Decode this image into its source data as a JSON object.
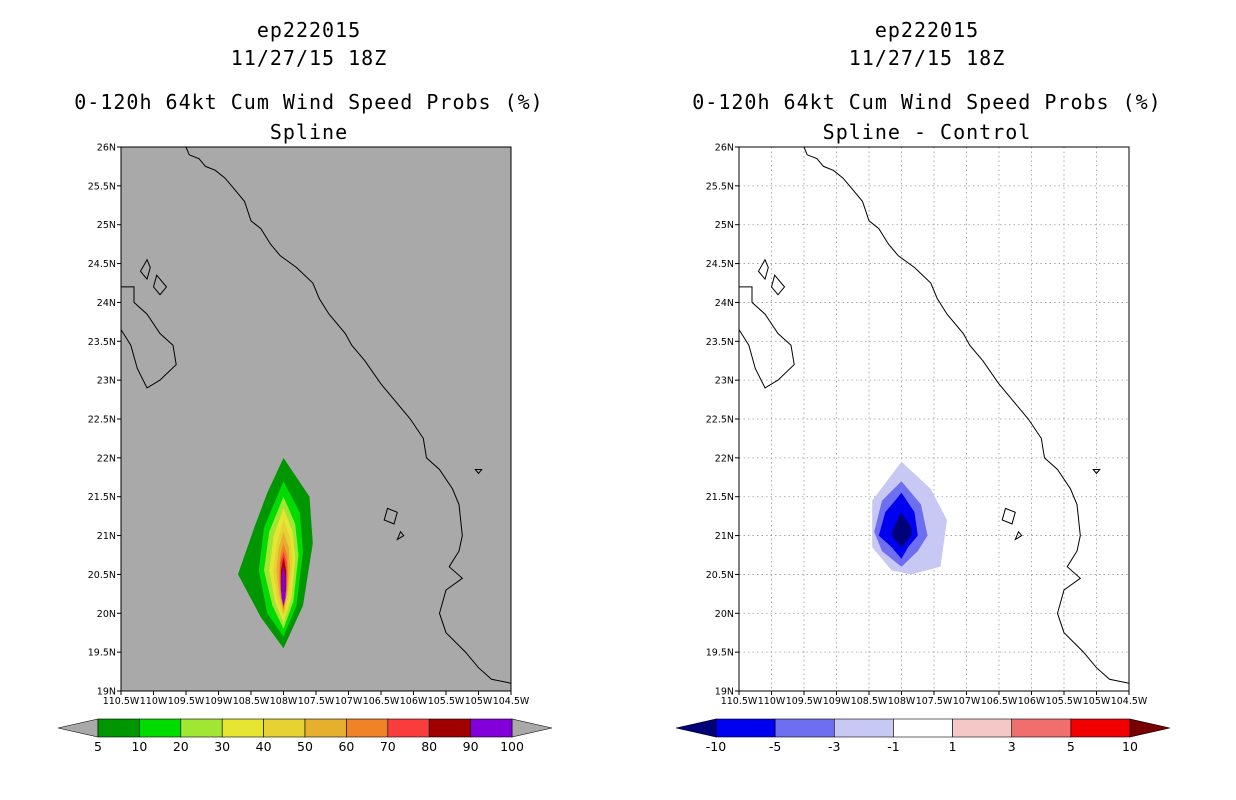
{
  "colors": {
    "land_ocean_left": "#a9a9a9",
    "frame": "#000000",
    "grid": "#999999"
  },
  "chart_data": [
    {
      "type": "heatmap",
      "storm": "ep222015",
      "datetime": "11/27/15 18Z",
      "title": "0-120h 64kt Cum Wind Speed Probs (%)",
      "subtitle": "Spline",
      "xlim": [
        -110.5,
        -104.5
      ],
      "ylim": [
        19,
        26
      ],
      "x_tick_labels": [
        "110.5W",
        "110W",
        "109.5W",
        "109W",
        "108.5W",
        "108W",
        "107.5W",
        "107W",
        "106.5W",
        "106W",
        "105.5W",
        "105W",
        "104.5W"
      ],
      "y_tick_labels": [
        "19N",
        "19.5N",
        "20N",
        "20.5N",
        "21N",
        "21.5N",
        "22N",
        "22.5N",
        "23N",
        "23.5N",
        "24N",
        "24.5N",
        "25N",
        "25.5N",
        "26N"
      ],
      "grid": false,
      "background": "#a9a9a9",
      "colorbar": {
        "labels": [
          "5",
          "10",
          "20",
          "30",
          "40",
          "50",
          "60",
          "70",
          "80",
          "90",
          "100"
        ],
        "colors": [
          "#009600",
          "#00dc00",
          "#a0e632",
          "#e6e632",
          "#e6d232",
          "#e6af2d",
          "#f08228",
          "#fa3c3c",
          "#a00000",
          "#8200dc"
        ],
        "under_color": "#a9a9a9",
        "over_color": "#a9a9a9"
      },
      "contours": [
        {
          "level": 5,
          "color": "#009600",
          "points": [
            [
              -108.0,
              22.0
            ],
            [
              -107.6,
              21.5
            ],
            [
              -107.55,
              20.9
            ],
            [
              -107.7,
              20.1
            ],
            [
              -108.0,
              19.55
            ],
            [
              -108.35,
              19.95
            ],
            [
              -108.7,
              20.5
            ],
            [
              -108.45,
              21.1
            ],
            [
              -108.25,
              21.55
            ]
          ]
        },
        {
          "level": 10,
          "color": "#00dc00",
          "points": [
            [
              -108.0,
              21.7
            ],
            [
              -107.75,
              21.3
            ],
            [
              -107.7,
              20.8
            ],
            [
              -107.8,
              20.1
            ],
            [
              -108.0,
              19.7
            ],
            [
              -108.25,
              20.0
            ],
            [
              -108.38,
              20.55
            ],
            [
              -108.3,
              21.1
            ]
          ]
        },
        {
          "level": 20,
          "color": "#a0e632",
          "points": [
            [
              -108.0,
              21.5
            ],
            [
              -107.82,
              21.15
            ],
            [
              -107.77,
              20.75
            ],
            [
              -107.85,
              20.15
            ],
            [
              -108.0,
              19.8
            ],
            [
              -108.17,
              20.1
            ],
            [
              -108.3,
              20.55
            ],
            [
              -108.22,
              21.05
            ]
          ]
        },
        {
          "level": 30,
          "color": "#e6e632",
          "points": [
            [
              -108.0,
              21.35
            ],
            [
              -107.86,
              21.05
            ],
            [
              -107.82,
              20.7
            ],
            [
              -107.88,
              20.2
            ],
            [
              -108.0,
              19.88
            ],
            [
              -108.13,
              20.15
            ],
            [
              -108.22,
              20.55
            ],
            [
              -108.15,
              21.0
            ]
          ]
        },
        {
          "level": 40,
          "color": "#e6d232",
          "points": [
            [
              -108.0,
              21.2
            ],
            [
              -107.89,
              20.95
            ],
            [
              -107.86,
              20.65
            ],
            [
              -107.91,
              20.25
            ],
            [
              -108.0,
              19.95
            ],
            [
              -108.1,
              20.2
            ],
            [
              -108.16,
              20.55
            ],
            [
              -108.1,
              20.9
            ]
          ]
        },
        {
          "level": 50,
          "color": "#e6af2d",
          "points": [
            [
              -108.0,
              21.05
            ],
            [
              -107.92,
              20.85
            ],
            [
              -107.9,
              20.6
            ],
            [
              -107.93,
              20.3
            ],
            [
              -108.0,
              20.0
            ],
            [
              -108.07,
              20.25
            ],
            [
              -108.11,
              20.55
            ],
            [
              -108.07,
              20.85
            ]
          ]
        },
        {
          "level": 60,
          "color": "#f08228",
          "points": [
            [
              -108.0,
              20.9
            ],
            [
              -107.94,
              20.75
            ],
            [
              -107.93,
              20.5
            ],
            [
              -107.95,
              20.25
            ],
            [
              -108.0,
              20.05
            ],
            [
              -108.05,
              20.25
            ],
            [
              -108.07,
              20.5
            ],
            [
              -108.05,
              20.75
            ]
          ]
        },
        {
          "level": 70,
          "color": "#fa3c3c",
          "points": [
            [
              -108.0,
              20.8
            ],
            [
              -107.95,
              20.65
            ],
            [
              -107.95,
              20.4
            ],
            [
              -107.97,
              20.2
            ],
            [
              -108.0,
              20.07
            ],
            [
              -108.03,
              20.2
            ],
            [
              -108.05,
              20.4
            ],
            [
              -108.05,
              20.65
            ]
          ]
        },
        {
          "level": 80,
          "color": "#a00000",
          "points": [
            [
              -108.0,
              20.72
            ],
            [
              -107.96,
              20.55
            ],
            [
              -107.96,
              20.3
            ],
            [
              -108.0,
              20.1
            ],
            [
              -108.04,
              20.3
            ],
            [
              -108.04,
              20.55
            ]
          ]
        },
        {
          "level": 90,
          "color": "#8200dc",
          "points": [
            [
              -108.0,
              20.62
            ],
            [
              -107.97,
              20.45
            ],
            [
              -107.97,
              20.2
            ],
            [
              -108.0,
              20.1
            ],
            [
              -108.03,
              20.2
            ],
            [
              -108.03,
              20.45
            ]
          ]
        }
      ]
    },
    {
      "type": "heatmap",
      "storm": "ep222015",
      "datetime": "11/27/15 18Z",
      "title": "0-120h 64kt Cum Wind Speed Probs (%)",
      "subtitle": "Spline - Control",
      "xlim": [
        -110.5,
        -104.5
      ],
      "ylim": [
        19,
        26
      ],
      "x_tick_labels": [
        "110.5W",
        "110W",
        "109.5W",
        "109W",
        "108.5W",
        "108W",
        "107.5W",
        "107W",
        "106.5W",
        "106W",
        "105.5W",
        "105W",
        "104.5W"
      ],
      "y_tick_labels": [
        "19N",
        "19.5N",
        "20N",
        "20.5N",
        "21N",
        "21.5N",
        "22N",
        "22.5N",
        "23N",
        "23.5N",
        "24N",
        "24.5N",
        "25N",
        "25.5N",
        "26N"
      ],
      "grid": true,
      "background": "#ffffff",
      "colorbar": {
        "labels": [
          "-10",
          "-5",
          "-3",
          "-1",
          "1",
          "3",
          "5",
          "10"
        ],
        "colors": [
          "#0000f0",
          "#6e6ef0",
          "#c8c8f5",
          "#ffffff",
          "#f5c8c8",
          "#f06e6e",
          "#f00000"
        ],
        "under_color": "#000078",
        "over_color": "#780000"
      },
      "contours": [
        {
          "level": -1,
          "color": "#c8c8f5",
          "points": [
            [
              -108.0,
              21.95
            ],
            [
              -107.55,
              21.6
            ],
            [
              -107.3,
              21.2
            ],
            [
              -107.4,
              20.6
            ],
            [
              -107.85,
              20.5
            ],
            [
              -108.15,
              20.55
            ],
            [
              -108.45,
              20.85
            ],
            [
              -108.45,
              21.45
            ]
          ]
        },
        {
          "level": -3,
          "color": "#6e6ef0",
          "points": [
            [
              -108.0,
              21.7
            ],
            [
              -107.7,
              21.4
            ],
            [
              -107.6,
              21.0
            ],
            [
              -107.75,
              20.8
            ],
            [
              -108.0,
              20.6
            ],
            [
              -108.3,
              20.8
            ],
            [
              -108.42,
              21.05
            ],
            [
              -108.3,
              21.45
            ]
          ]
        },
        {
          "level": -5,
          "color": "#0000f0",
          "points": [
            [
              -108.0,
              21.55
            ],
            [
              -107.8,
              21.3
            ],
            [
              -107.75,
              21.0
            ],
            [
              -107.9,
              20.85
            ],
            [
              -108.0,
              20.7
            ],
            [
              -108.15,
              20.85
            ],
            [
              -108.35,
              21.0
            ],
            [
              -108.25,
              21.3
            ]
          ]
        },
        {
          "level": -10,
          "color": "#000078",
          "points": [
            [
              -108.0,
              21.3
            ],
            [
              -107.85,
              21.1
            ],
            [
              -107.85,
              21.0
            ],
            [
              -108.0,
              20.85
            ],
            [
              -108.15,
              21.0
            ],
            [
              -108.12,
              21.1
            ]
          ]
        }
      ]
    }
  ],
  "coastlines": {
    "mainland": [
      [
        -109.5,
        26.0
      ],
      [
        -109.45,
        25.9
      ],
      [
        -109.3,
        25.85
      ],
      [
        -109.2,
        25.75
      ],
      [
        -109.05,
        25.7
      ],
      [
        -108.9,
        25.6
      ],
      [
        -108.75,
        25.45
      ],
      [
        -108.6,
        25.3
      ],
      [
        -108.5,
        25.05
      ],
      [
        -108.35,
        24.95
      ],
      [
        -108.2,
        24.75
      ],
      [
        -108.05,
        24.6
      ],
      [
        -107.8,
        24.45
      ],
      [
        -107.55,
        24.25
      ],
      [
        -107.45,
        24.05
      ],
      [
        -107.3,
        23.85
      ],
      [
        -107.05,
        23.6
      ],
      [
        -106.95,
        23.45
      ],
      [
        -106.75,
        23.25
      ],
      [
        -106.5,
        22.95
      ],
      [
        -106.3,
        22.75
      ],
      [
        -106.05,
        22.5
      ],
      [
        -105.85,
        22.25
      ],
      [
        -105.8,
        22.0
      ],
      [
        -105.6,
        21.85
      ],
      [
        -105.4,
        21.6
      ],
      [
        -105.3,
        21.4
      ],
      [
        -105.25,
        21.0
      ],
      [
        -105.3,
        20.8
      ],
      [
        -105.45,
        20.6
      ],
      [
        -105.25,
        20.45
      ],
      [
        -105.5,
        20.3
      ],
      [
        -105.6,
        20.0
      ],
      [
        -105.5,
        19.75
      ],
      [
        -105.2,
        19.5
      ],
      [
        -105.0,
        19.3
      ],
      [
        -104.8,
        19.15
      ],
      [
        -104.5,
        19.1
      ]
    ],
    "baja": [
      [
        -110.5,
        24.2
      ],
      [
        -110.3,
        24.2
      ],
      [
        -110.3,
        24.0
      ],
      [
        -110.1,
        23.85
      ],
      [
        -109.9,
        23.6
      ],
      [
        -109.7,
        23.45
      ],
      [
        -109.65,
        23.2
      ],
      [
        -109.9,
        23.0
      ],
      [
        -110.1,
        22.9
      ],
      [
        -110.25,
        23.15
      ],
      [
        -110.35,
        23.45
      ],
      [
        -110.5,
        23.65
      ]
    ],
    "islands": [
      [
        [
          -110.1,
          24.55
        ],
        [
          -110.05,
          24.45
        ],
        [
          -110.1,
          24.3
        ],
        [
          -110.2,
          24.4
        ]
      ],
      [
        [
          -109.95,
          24.35
        ],
        [
          -109.8,
          24.2
        ],
        [
          -109.9,
          24.1
        ],
        [
          -110.0,
          24.2
        ]
      ],
      [
        [
          -106.4,
          21.35
        ],
        [
          -106.25,
          21.3
        ],
        [
          -106.3,
          21.15
        ],
        [
          -106.45,
          21.2
        ]
      ],
      [
        [
          -106.2,
          21.05
        ],
        [
          -106.15,
          21.0
        ],
        [
          -106.25,
          20.95
        ]
      ],
      [
        [
          -105.05,
          21.85
        ],
        [
          -104.95,
          21.85
        ],
        [
          -105.0,
          21.8
        ]
      ]
    ]
  }
}
